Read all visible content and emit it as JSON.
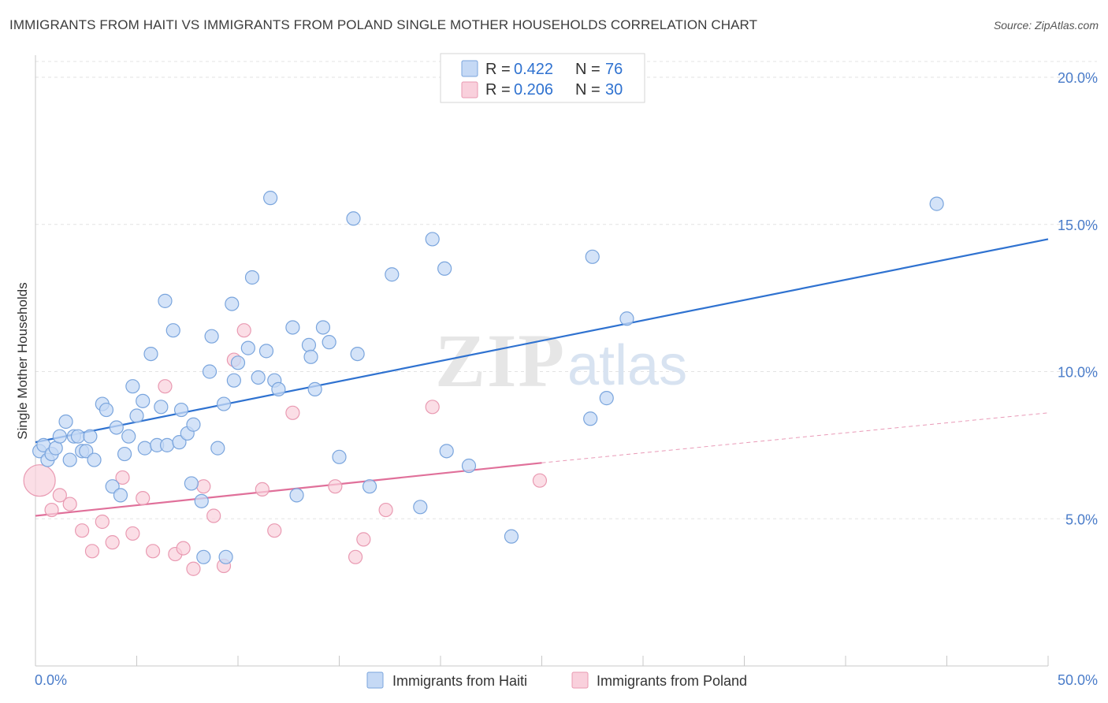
{
  "header": {
    "title": "IMMIGRANTS FROM HAITI VS IMMIGRANTS FROM POLAND SINGLE MOTHER HOUSEHOLDS CORRELATION CHART",
    "source": "Source: ZipAtlas.com"
  },
  "watermark": {
    "zip": "ZIP",
    "atlas": "atlas"
  },
  "legend": {
    "haiti": {
      "r_label": "R =",
      "r_value": "0.422",
      "n_label": "N =",
      "n_value": "76"
    },
    "poland": {
      "r_label": "R =",
      "r_value": "0.206",
      "n_label": "N =",
      "n_value": "30"
    }
  },
  "colors": {
    "haiti_fill": "#c5d9f5",
    "haiti_stroke": "#7aa5dd",
    "haiti_line": "#2f72d0",
    "poland_fill": "#f9d0dc",
    "poland_stroke": "#e99ab2",
    "poland_line": "#e0709a",
    "value_text": "#2f72d0",
    "grid": "#e3e3e3"
  },
  "chart_data": {
    "type": "scatter",
    "title": "IMMIGRANTS FROM HAITI VS IMMIGRANTS FROM POLAND SINGLE MOTHER HOUSEHOLDS CORRELATION CHART",
    "xlabel": "",
    "ylabel": "Single Mother Households",
    "xlim": [
      0,
      50
    ],
    "ylim": [
      0,
      20.5
    ],
    "x_tick_labels": [
      "0.0%",
      "50.0%"
    ],
    "y_ticks": [
      5,
      10,
      15,
      20
    ],
    "y_tick_labels": [
      "5.0%",
      "10.0%",
      "15.0%",
      "20.0%"
    ],
    "grid": true,
    "legend_position": "top-center",
    "series": [
      {
        "name": "Immigrants from Haiti",
        "r": 0.422,
        "n": 76,
        "trend": {
          "x": [
            0,
            50
          ],
          "y": [
            7.6,
            14.5
          ]
        },
        "points": [
          [
            0.2,
            7.3
          ],
          [
            0.4,
            7.5
          ],
          [
            0.6,
            7.0
          ],
          [
            0.8,
            7.2
          ],
          [
            1.0,
            7.4
          ],
          [
            1.2,
            7.8
          ],
          [
            1.5,
            8.3
          ],
          [
            1.7,
            7.0
          ],
          [
            1.9,
            7.8
          ],
          [
            2.1,
            7.8
          ],
          [
            2.3,
            7.3
          ],
          [
            2.5,
            7.3
          ],
          [
            2.7,
            7.8
          ],
          [
            2.9,
            7.0
          ],
          [
            3.3,
            8.9
          ],
          [
            3.5,
            8.7
          ],
          [
            3.8,
            6.1
          ],
          [
            4.0,
            8.1
          ],
          [
            4.2,
            5.8
          ],
          [
            4.4,
            7.2
          ],
          [
            4.6,
            7.8
          ],
          [
            4.8,
            9.5
          ],
          [
            5.0,
            8.5
          ],
          [
            5.3,
            9.0
          ],
          [
            5.4,
            7.4
          ],
          [
            5.7,
            10.6
          ],
          [
            6.0,
            7.5
          ],
          [
            6.2,
            8.8
          ],
          [
            6.4,
            12.4
          ],
          [
            6.5,
            7.5
          ],
          [
            6.8,
            11.4
          ],
          [
            7.1,
            7.6
          ],
          [
            7.2,
            8.7
          ],
          [
            7.5,
            7.9
          ],
          [
            7.7,
            6.2
          ],
          [
            7.8,
            8.2
          ],
          [
            8.2,
            5.6
          ],
          [
            8.3,
            3.7
          ],
          [
            8.6,
            10.0
          ],
          [
            8.7,
            11.2
          ],
          [
            9.0,
            7.4
          ],
          [
            9.3,
            8.9
          ],
          [
            9.4,
            3.7
          ],
          [
            9.7,
            12.3
          ],
          [
            9.8,
            9.7
          ],
          [
            10.0,
            10.3
          ],
          [
            10.5,
            10.8
          ],
          [
            10.7,
            13.2
          ],
          [
            11.0,
            9.8
          ],
          [
            11.4,
            10.7
          ],
          [
            11.6,
            15.9
          ],
          [
            11.8,
            9.7
          ],
          [
            12.0,
            9.4
          ],
          [
            12.7,
            11.5
          ],
          [
            12.9,
            5.8
          ],
          [
            13.5,
            10.9
          ],
          [
            13.6,
            10.5
          ],
          [
            13.8,
            9.4
          ],
          [
            14.2,
            11.5
          ],
          [
            14.5,
            11.0
          ],
          [
            15.0,
            7.1
          ],
          [
            15.7,
            15.2
          ],
          [
            15.9,
            10.6
          ],
          [
            16.5,
            6.1
          ],
          [
            17.6,
            13.3
          ],
          [
            19.0,
            5.4
          ],
          [
            19.6,
            14.5
          ],
          [
            20.2,
            13.5
          ],
          [
            20.3,
            7.3
          ],
          [
            21.4,
            6.8
          ],
          [
            23.5,
            4.4
          ],
          [
            27.4,
            8.4
          ],
          [
            27.5,
            13.9
          ],
          [
            28.2,
            9.1
          ],
          [
            29.2,
            11.8
          ],
          [
            44.5,
            15.7
          ]
        ]
      },
      {
        "name": "Immigrants from Poland",
        "r": 0.206,
        "n": 30,
        "trend": {
          "x": [
            0,
            25
          ],
          "y": [
            5.1,
            6.9
          ]
        },
        "trend_extension": {
          "x": [
            25,
            50
          ],
          "y": [
            6.9,
            8.6
          ]
        },
        "points": [
          [
            0.2,
            6.3
          ],
          [
            0.8,
            5.3
          ],
          [
            1.2,
            5.8
          ],
          [
            1.7,
            5.5
          ],
          [
            2.3,
            4.6
          ],
          [
            2.8,
            3.9
          ],
          [
            3.3,
            4.9
          ],
          [
            3.8,
            4.2
          ],
          [
            4.3,
            6.4
          ],
          [
            4.8,
            4.5
          ],
          [
            5.3,
            5.7
          ],
          [
            5.8,
            3.9
          ],
          [
            6.4,
            9.5
          ],
          [
            6.9,
            3.8
          ],
          [
            7.3,
            4.0
          ],
          [
            7.8,
            3.3
          ],
          [
            8.3,
            6.1
          ],
          [
            8.8,
            5.1
          ],
          [
            9.3,
            3.4
          ],
          [
            9.8,
            10.4
          ],
          [
            10.3,
            11.4
          ],
          [
            11.2,
            6.0
          ],
          [
            11.8,
            4.6
          ],
          [
            12.7,
            8.6
          ],
          [
            14.8,
            6.1
          ],
          [
            15.8,
            3.7
          ],
          [
            16.2,
            4.3
          ],
          [
            17.3,
            5.3
          ],
          [
            19.6,
            8.8
          ],
          [
            24.9,
            6.3
          ]
        ]
      }
    ]
  },
  "bottom_legend": {
    "haiti": "Immigrants from Haiti",
    "poland": "Immigrants from Poland"
  }
}
